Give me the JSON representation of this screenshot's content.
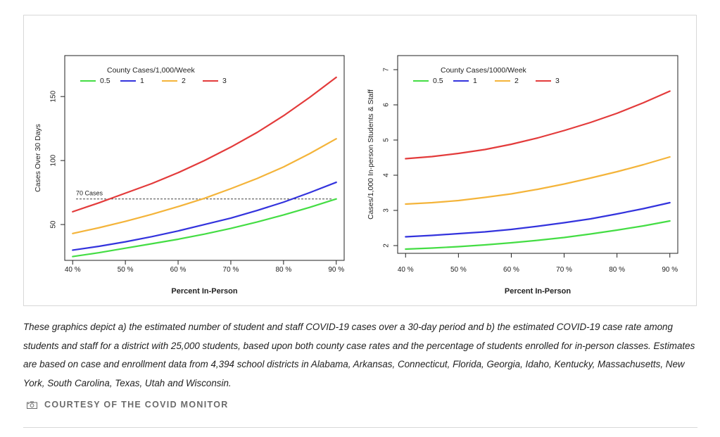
{
  "chart_data": [
    {
      "type": "line",
      "title": "",
      "legend_title": "County Cases/1,000/Week",
      "legend_placement": "top-left",
      "xlabel": "Percent In-Person",
      "ylabel": "Cases Over 30 Days",
      "x_ticks": [
        "40 %",
        "50 %",
        "60 %",
        "70 %",
        "80 %",
        "90 %"
      ],
      "xlim": [
        38.5,
        91.5
      ],
      "ylim": [
        22,
        182
      ],
      "y_ticks": [
        50,
        100,
        150
      ],
      "grid": false,
      "x": [
        40,
        45,
        50,
        55,
        60,
        65,
        70,
        75,
        80,
        85,
        90
      ],
      "series": [
        {
          "name": "0.5",
          "color": "#44dd44",
          "values": [
            25,
            28,
            31.5,
            35,
            38.5,
            42.5,
            47,
            52,
            57.5,
            63.5,
            70
          ]
        },
        {
          "name": "1",
          "color": "#3333dd",
          "values": [
            30,
            33,
            36.5,
            40.5,
            45,
            50,
            55,
            61,
            67.5,
            75,
            83
          ]
        },
        {
          "name": "2",
          "color": "#f4b43a",
          "values": [
            43,
            47.5,
            52.5,
            58,
            64,
            70.5,
            78,
            86,
            95,
            105.5,
            117
          ]
        },
        {
          "name": "3",
          "color": "#e33b3b",
          "values": [
            60,
            67,
            74.5,
            82,
            90.5,
            100,
            110.5,
            122,
            135,
            149.5,
            165
          ]
        }
      ],
      "annotations": [
        {
          "text": "70 Cases",
          "y": 70,
          "style": "dashed-horizontal-line"
        }
      ]
    },
    {
      "type": "line",
      "title": "",
      "legend_title": "County Cases/1000/Week",
      "legend_placement": "top-left",
      "xlabel": "Percent In-Person",
      "ylabel": "Cases/1,000 In-person Students & Staff",
      "x_ticks": [
        "40 %",
        "50 %",
        "60 %",
        "70 %",
        "80 %",
        "90 %"
      ],
      "xlim": [
        38.5,
        91.5
      ],
      "ylim": [
        1.78,
        7.4
      ],
      "y_ticks": [
        2,
        3,
        4,
        5,
        6,
        7
      ],
      "grid": false,
      "x": [
        40,
        45,
        50,
        55,
        60,
        65,
        70,
        75,
        80,
        85,
        90
      ],
      "series": [
        {
          "name": "0.5",
          "color": "#44dd44",
          "values": [
            1.9,
            1.93,
            1.97,
            2.02,
            2.08,
            2.15,
            2.23,
            2.33,
            2.44,
            2.56,
            2.7
          ]
        },
        {
          "name": "1",
          "color": "#3333dd",
          "values": [
            2.25,
            2.29,
            2.34,
            2.39,
            2.46,
            2.55,
            2.65,
            2.76,
            2.9,
            3.05,
            3.22
          ]
        },
        {
          "name": "2",
          "color": "#f4b43a",
          "values": [
            3.18,
            3.22,
            3.28,
            3.37,
            3.47,
            3.6,
            3.75,
            3.92,
            4.1,
            4.3,
            4.52
          ]
        },
        {
          "name": "3",
          "color": "#e33b3b",
          "values": [
            4.47,
            4.53,
            4.62,
            4.73,
            4.88,
            5.06,
            5.27,
            5.5,
            5.76,
            6.06,
            6.39
          ]
        }
      ]
    }
  ],
  "caption": "These graphics depict a) the estimated number of student and staff COVID-19 cases over a 30-day period and b) the estimated COVID-19 case rate among students and staff for a district with 25,000 students, based upon both county case rates and the percentage of students enrolled for in-person classes. Estimates are based on case and enrollment data from 4,394 school districts in Alabama, Arkansas, Connecticut, Florida, Georgia, Idaho, Kentucky, Massachusetts, New York, South Carolina, Texas, Utah and Wisconsin.",
  "credit": {
    "icon": "camera-icon",
    "text": "COURTESY OF THE COVID MONITOR"
  }
}
